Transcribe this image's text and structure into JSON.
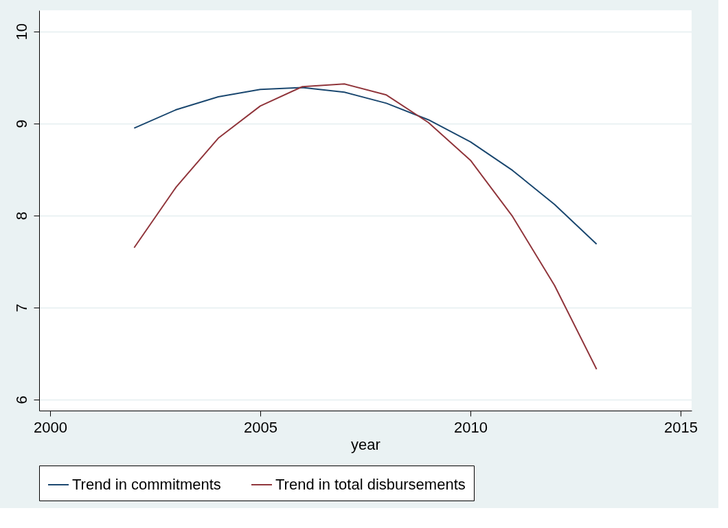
{
  "chart_data": {
    "type": "line",
    "xlabel": "year",
    "x": [
      2002,
      2003,
      2004,
      2005,
      2006,
      2007,
      2008,
      2009,
      2010,
      2011,
      2012,
      2013
    ],
    "series": [
      {
        "name": "Trend in commitments",
        "color": "#1a476f",
        "values": [
          8.95,
          9.15,
          9.29,
          9.37,
          9.39,
          9.34,
          9.22,
          9.04,
          8.8,
          8.49,
          8.12,
          7.69
        ]
      },
      {
        "name": "Trend in total disbursements",
        "color": "#90353b",
        "values": [
          7.65,
          8.31,
          8.84,
          9.19,
          9.4,
          9.43,
          9.31,
          9.01,
          8.6,
          7.99,
          7.24,
          6.33
        ]
      }
    ],
    "xlim": [
      1999.74,
      2015.26
    ],
    "xticks": [
      2000,
      2005,
      2010,
      2015
    ],
    "ylim": [
      5.88,
      10.23
    ],
    "yticks": [
      6,
      7,
      8,
      9,
      10
    ],
    "grid": "y",
    "legend": "bottom",
    "marker": "none",
    "line_style": "solid"
  }
}
